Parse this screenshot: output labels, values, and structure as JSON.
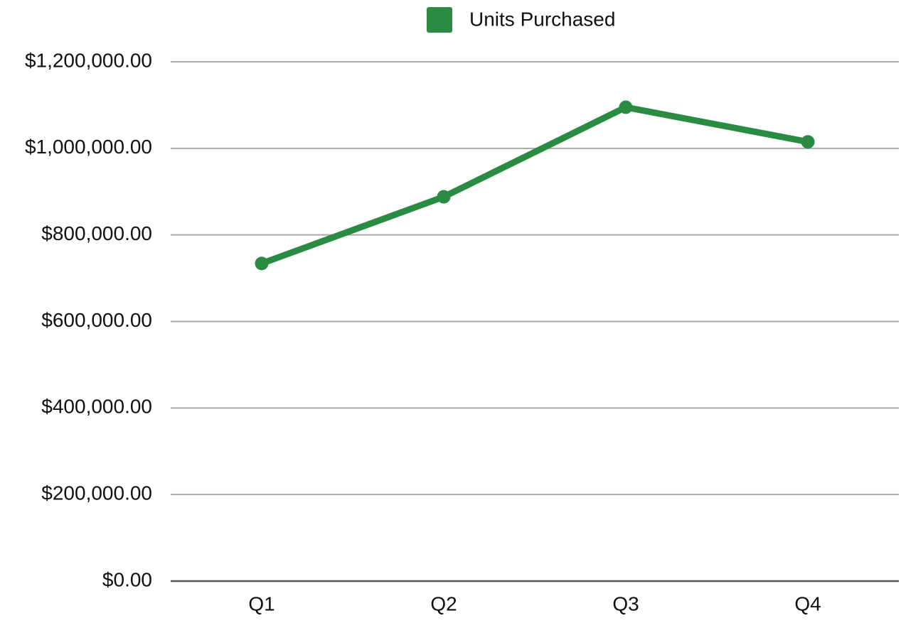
{
  "chart_data": {
    "type": "line",
    "categories": [
      "Q1",
      "Q2",
      "Q3",
      "Q4"
    ],
    "series": [
      {
        "name": "Units Purchased",
        "color": "#2a8c43",
        "values": [
          734000,
          888000,
          1095000,
          1015000
        ]
      }
    ],
    "ylim": [
      0,
      1200000
    ],
    "yticks": [
      {
        "value": 0,
        "label": "$0.00"
      },
      {
        "value": 200000,
        "label": "$200,000.00"
      },
      {
        "value": 400000,
        "label": "$400,000.00"
      },
      {
        "value": 600000,
        "label": "$600,000.00"
      },
      {
        "value": 800000,
        "label": "$800,000.00"
      },
      {
        "value": 1000000,
        "label": "$1,000,000.00"
      },
      {
        "value": 1200000,
        "label": "$1,200,000.00"
      }
    ],
    "grid": true,
    "legend": "top"
  }
}
